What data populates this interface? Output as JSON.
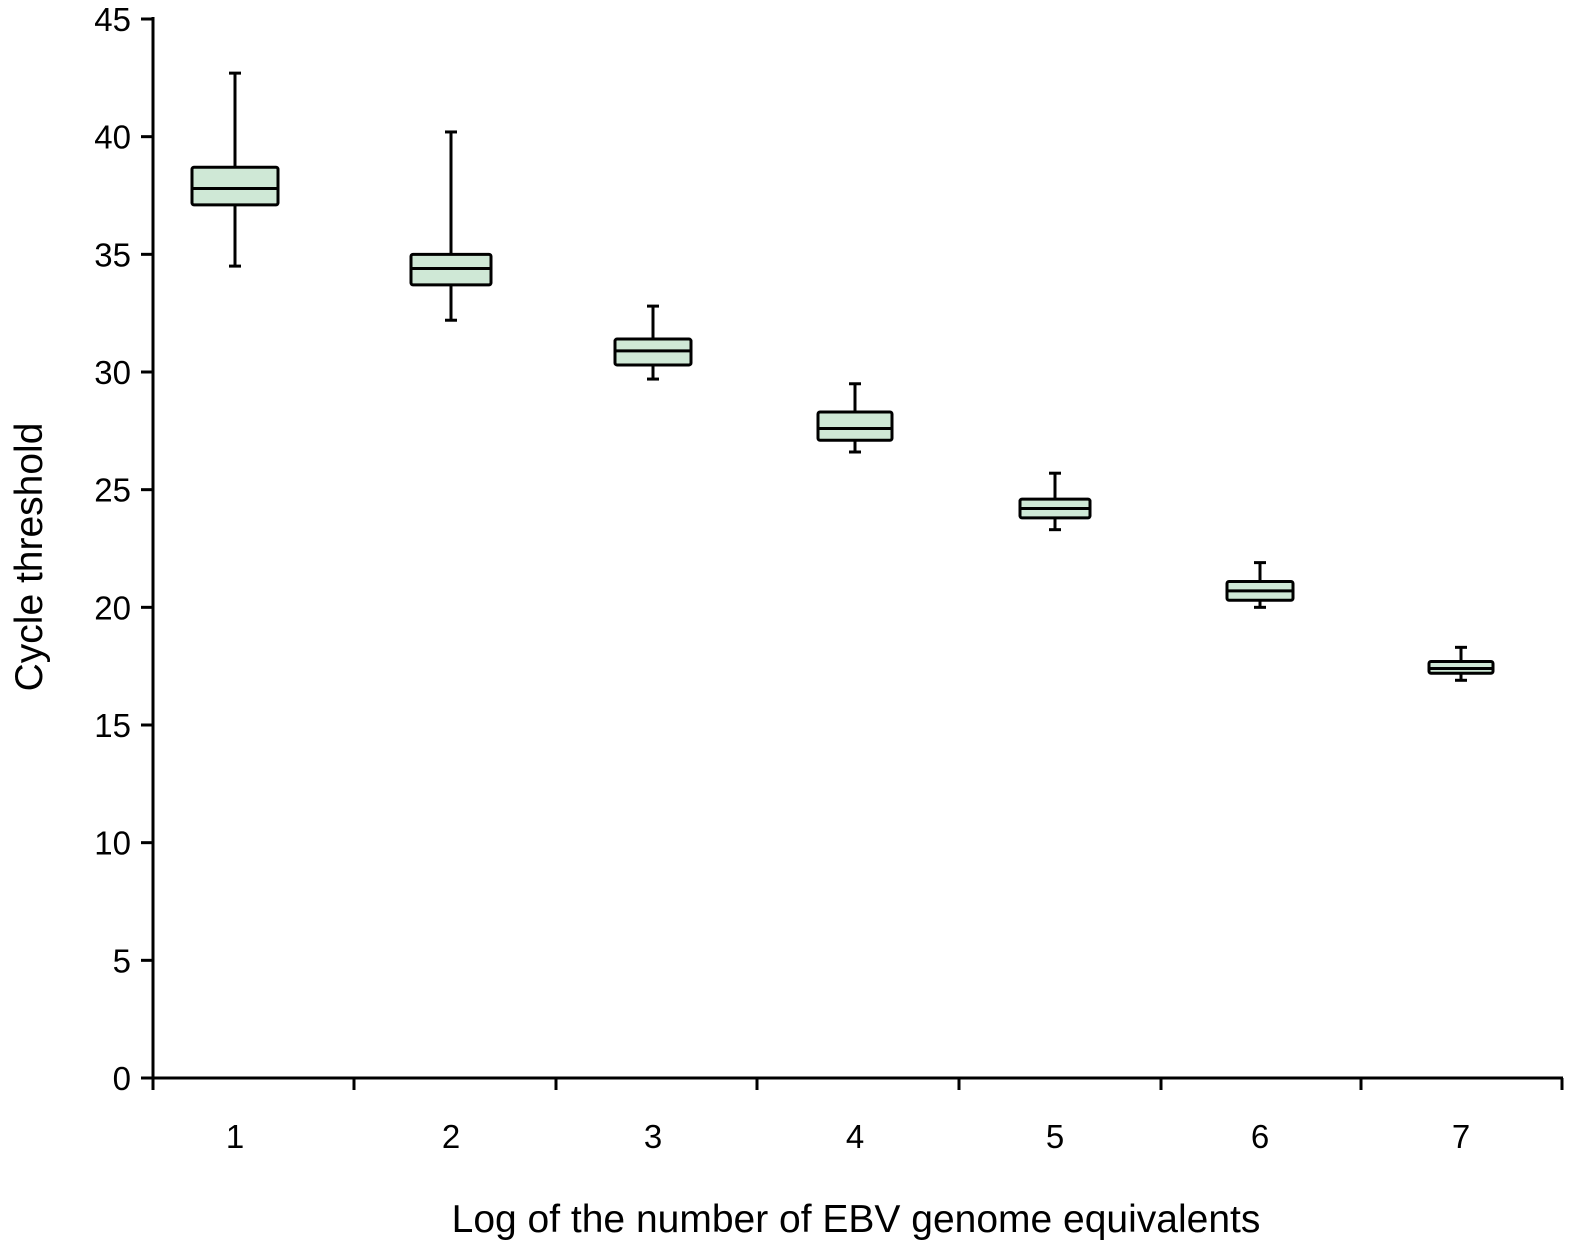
{
  "chart_data": {
    "type": "box",
    "title": "",
    "xlabel": "Log of the number of EBV genome equivalents",
    "ylabel": "Cycle threshold",
    "ylim": [
      0,
      45
    ],
    "yticks": [
      0,
      5,
      10,
      15,
      20,
      25,
      30,
      35,
      40,
      45
    ],
    "grid": false,
    "legend": "none",
    "box_fill": "#cfe8d6",
    "box_stroke": "#000000",
    "categories": [
      "1",
      "2",
      "3",
      "4",
      "5",
      "6",
      "7"
    ],
    "boxes": [
      {
        "category": "1",
        "min": 34.5,
        "q1": 37.1,
        "median": 37.8,
        "q3": 38.7,
        "max": 42.7
      },
      {
        "category": "2",
        "min": 32.2,
        "q1": 33.7,
        "median": 34.4,
        "q3": 35.0,
        "max": 40.2
      },
      {
        "category": "3",
        "min": 29.7,
        "q1": 30.3,
        "median": 30.9,
        "q3": 31.4,
        "max": 32.8
      },
      {
        "category": "4",
        "min": 26.6,
        "q1": 27.1,
        "median": 27.6,
        "q3": 28.3,
        "max": 29.5
      },
      {
        "category": "5",
        "min": 23.3,
        "q1": 23.8,
        "median": 24.2,
        "q3": 24.6,
        "max": 25.7
      },
      {
        "category": "6",
        "min": 20.0,
        "q1": 20.3,
        "median": 20.7,
        "q3": 21.1,
        "max": 21.9
      },
      {
        "category": "7",
        "min": 16.9,
        "q1": 17.2,
        "median": 17.4,
        "q3": 17.7,
        "max": 18.3
      }
    ]
  }
}
